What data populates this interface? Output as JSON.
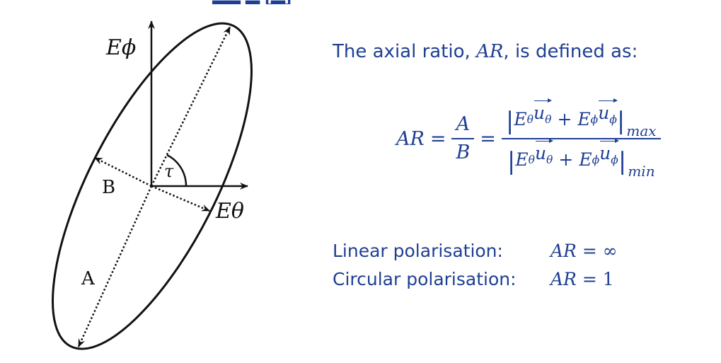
{
  "diagram": {
    "labels": {
      "e_phi": "Eϕ",
      "e_theta": "Eθ",
      "tau": "τ",
      "major_axis": "A",
      "minor_axis": "B"
    },
    "colors": {
      "ink": "#111111",
      "text_blue": "#1f3f93"
    }
  },
  "definition": {
    "intro_prefix": "The axial ratio, ",
    "intro_symbol": "AR",
    "intro_suffix": ", is defined as:",
    "lhs": "AR",
    "equals": "=",
    "frac_num": "A",
    "frac_den": "B",
    "term_theta_field": "E",
    "term_theta_sub": "θ",
    "term_unit": "u",
    "plus": "+",
    "term_phi_sub": "ϕ",
    "max_sub": "max",
    "min_sub": "min"
  },
  "polarisation": {
    "linear_label": "Linear polarisation:",
    "linear_value_sym": "AR",
    "linear_value_num": "= ∞",
    "circular_label": "Circular polarisation:",
    "circular_value_sym": "AR",
    "circular_value_num": "= 1"
  }
}
